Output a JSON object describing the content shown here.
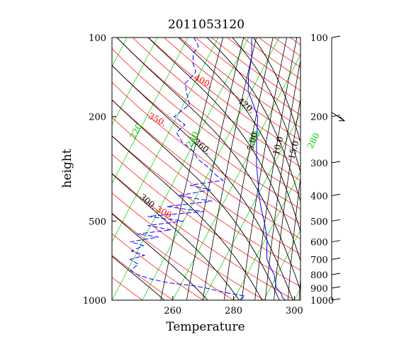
{
  "chart_data": {
    "type": "line",
    "title": "2011053120",
    "xlabel": "Temperature",
    "ylabel": "height",
    "xlim": [
      240,
      302
    ],
    "ylim": [
      1000,
      100
    ],
    "y_scale": "log",
    "x_ticks": [
      "260",
      "280",
      "300"
    ],
    "y_ticks_left": [
      "100",
      "200",
      "500",
      "1000"
    ],
    "y_ticks_right": [
      "100",
      "200",
      "300",
      "400",
      "500",
      "600",
      "700",
      "800",
      "900",
      "1000"
    ],
    "grid": false,
    "colors": {
      "temperature": "#0000ff",
      "dewpoint": "#0000ff",
      "isotherm": "#00cc00",
      "isentrope": "#ff0000",
      "moist_adiabat": "#000000",
      "mixing_ratio": "#000000"
    },
    "isotherm_labels": [
      {
        "text": "220",
        "value": 220
      },
      {
        "text": "240",
        "value": 240
      },
      {
        "text": "260",
        "value": 260
      },
      {
        "text": "280",
        "value": 280
      }
    ],
    "isentrope_labels": [
      {
        "text": "300.",
        "value": 300
      },
      {
        "text": "350.",
        "value": 350
      },
      {
        "text": "400.",
        "value": 400
      }
    ],
    "moist_adiabat_labels": [
      {
        "text": "300.",
        "value": 300
      },
      {
        "text": "360.",
        "value": 360
      },
      {
        "text": "420.",
        "value": 420
      }
    ],
    "mixing_ratio_labels": [
      {
        "text": "5.00",
        "value": 5
      },
      {
        "text": "10.0",
        "value": 10
      },
      {
        "text": "15.0",
        "value": 15
      }
    ],
    "series": [
      {
        "kind": "temperature",
        "style": "solid",
        "x": [
          297.0,
          295.5,
          294.8,
          293.5,
          292.0,
          290.5,
          289.0,
          286.5,
          284.0,
          282.5,
          281.0,
          279.0,
          276.5,
          273.5,
          270.5,
          267.5,
          264.0,
          260.5,
          256.5,
          253.0,
          249.0,
          246.5,
          244.5,
          241.0
        ],
        "p": [
          1000,
          975,
          950,
          925,
          900,
          850,
          800,
          750,
          700,
          650,
          600,
          550,
          500,
          450,
          400,
          350,
          300,
          250,
          200,
          180,
          160,
          140,
          120,
          100
        ]
      },
      {
        "kind": "dewpoint",
        "style": "dashed",
        "x": [
          282.0,
          283.0,
          276.0,
          269.0,
          264.0,
          256.0,
          249.0,
          244.0,
          241.0,
          242.5,
          239.0,
          243.0,
          238.0,
          241.0,
          236.0,
          244.5,
          237.0,
          247.5,
          239.0,
          250.0,
          237.5,
          255.0,
          242.0,
          256.0,
          244.0,
          253.5,
          246.0,
          256.0,
          252.0,
          248.5,
          244.0,
          241.0,
          236.0,
          232.5,
          234.0,
          229.0,
          232.0,
          229.5,
          227.0,
          228.5,
          226.0,
          224.5,
          225.0,
          222.0
        ],
        "p": [
          1000,
          965,
          935,
          900,
          880,
          860,
          830,
          800,
          770,
          730,
          700,
          675,
          650,
          620,
          600,
          575,
          560,
          540,
          520,
          500,
          480,
          460,
          440,
          420,
          400,
          380,
          365,
          350,
          330,
          310,
          290,
          270,
          250,
          230,
          215,
          200,
          180,
          165,
          150,
          135,
          125,
          115,
          108,
          100
        ]
      }
    ]
  }
}
